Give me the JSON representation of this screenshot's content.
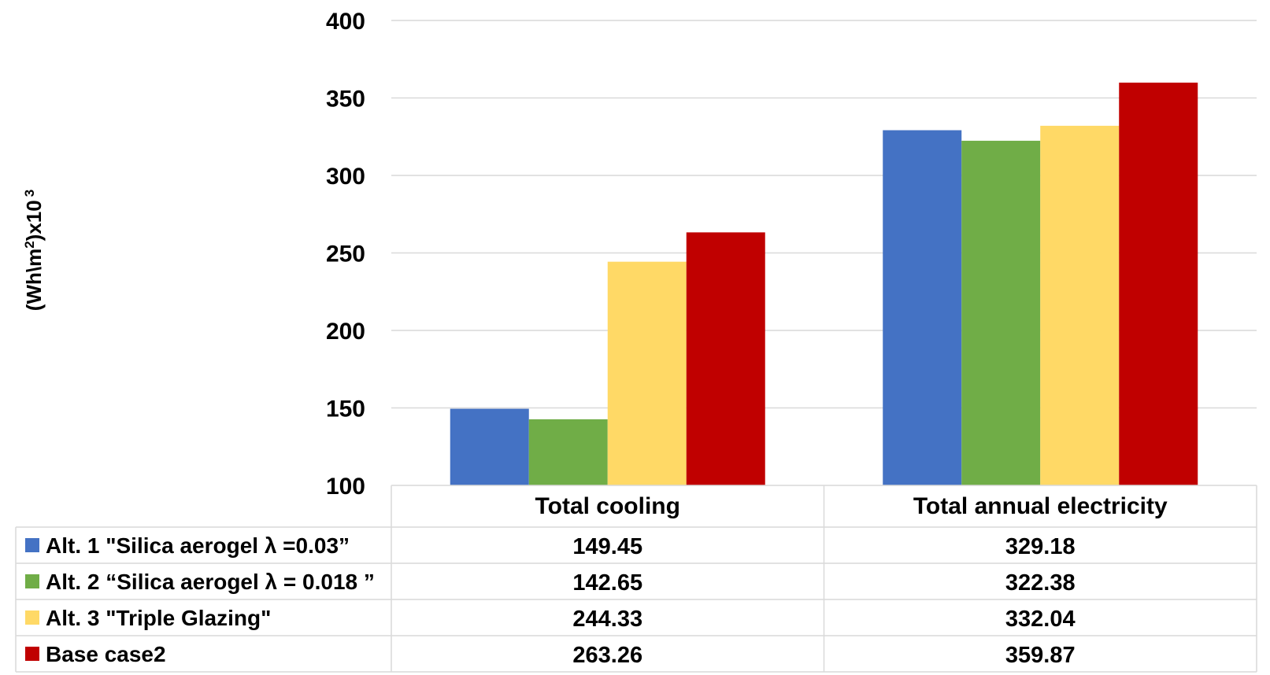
{
  "chart_data": {
    "type": "bar",
    "ylabel_main": "(Wh\\m",
    "ylabel_sup1": "2",
    "ylabel_mid": ")x10",
    "ylabel_sup2": "3",
    "ylim": [
      100,
      400
    ],
    "yticks": [
      100,
      150,
      200,
      250,
      300,
      350,
      400
    ],
    "grid": true,
    "legend_placement": "data-table-left",
    "categories": [
      "Total cooling",
      "Total annual electricity"
    ],
    "series": [
      {
        "name": "Alt. 1 \"Silica  aerogel λ =0.03”",
        "color": "#4472C4",
        "values": [
          149.45,
          329.18
        ],
        "display": [
          "149.45",
          "329.18"
        ]
      },
      {
        "name": "Alt. 2 “Silica  aerogel λ = 0.018 ”",
        "color": "#70AD47",
        "values": [
          142.65,
          322.38
        ],
        "display": [
          "142.65",
          "322.38"
        ]
      },
      {
        "name": "Alt. 3 \"Triple Glazing\"",
        "color": "#FFD966",
        "values": [
          244.33,
          332.04
        ],
        "display": [
          "244.33",
          "332.04"
        ]
      },
      {
        "name": "Base case2",
        "color": "#C00000",
        "values": [
          263.26,
          359.87
        ],
        "display": [
          "263.26",
          "359.87"
        ]
      }
    ]
  }
}
